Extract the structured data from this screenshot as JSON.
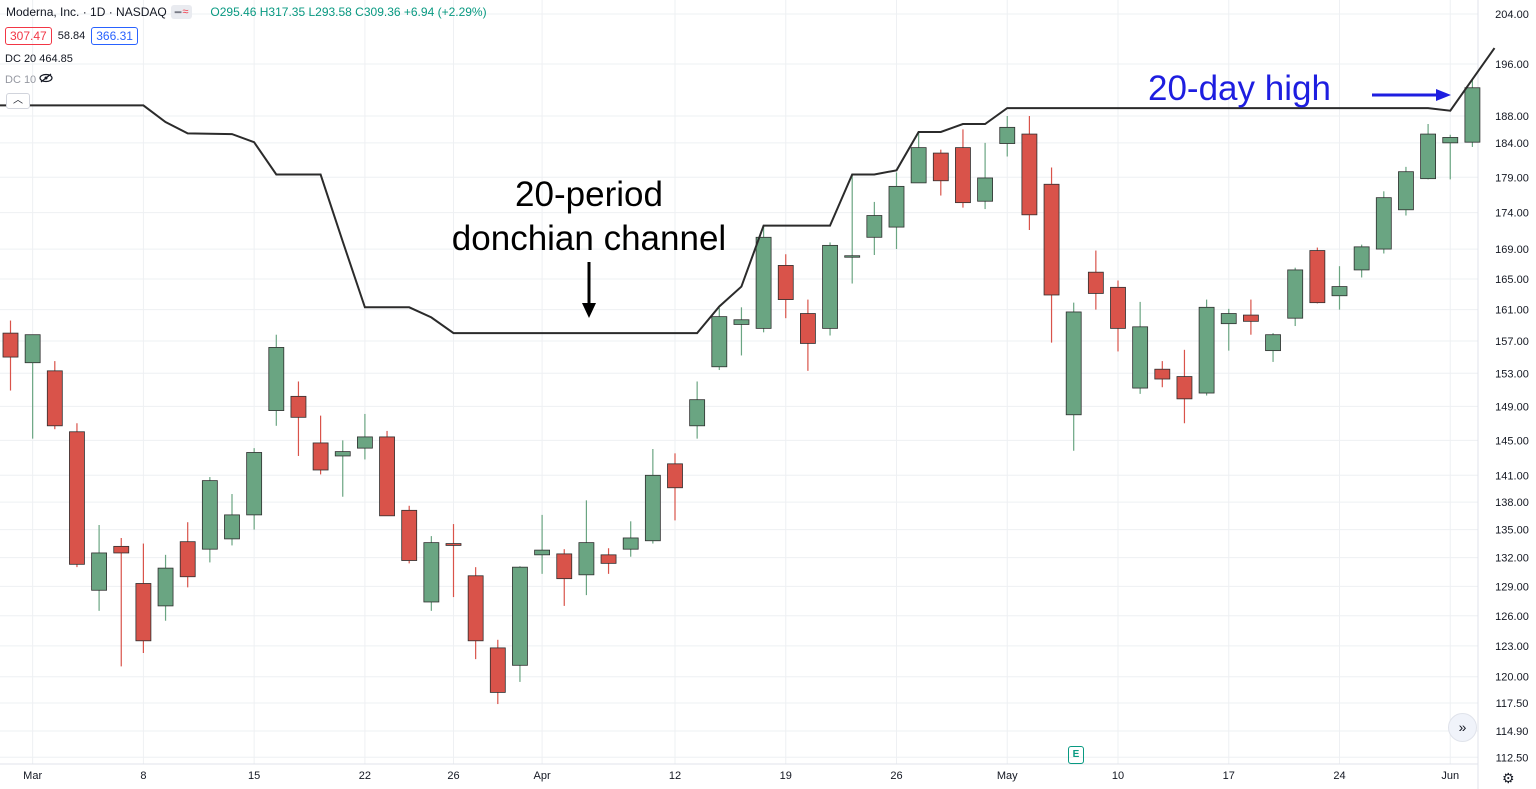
{
  "header": {
    "symbol": "Moderna, Inc. · 1D · NASDAQ",
    "ohlc": "O295.46 H317.35 L293.58 C309.36 +6.94 (+2.29%)",
    "sell_price": "307.47",
    "spread": "58.84",
    "buy_price": "366.31",
    "indicator_1": "DC 20",
    "indicator_1_value": "464.85",
    "indicator_2": "DC 10"
  },
  "annotations": {
    "donchian_line1": "20-period",
    "donchian_line2": "donchian channel",
    "high_label": "20-day high"
  },
  "colors": {
    "up": "#6aa582",
    "down": "#d9534a",
    "channel": "#2b2b2b",
    "grid": "#eef0f3",
    "annotation_blue": "#1e1ee0"
  },
  "icons": [
    "chevron-up-icon",
    "eye-off-icon",
    "double-chevron-right-icon",
    "earnings-icon",
    "gear-icon"
  ],
  "chart_data": {
    "type": "candlestick",
    "y_axis": {
      "scale": "log",
      "ticks": [
        "112.50",
        "114.90",
        "117.50",
        "120.00",
        "123.00",
        "126.00",
        "129.00",
        "132.00",
        "135.00",
        "138.00",
        "141.00",
        "145.00",
        "149.00",
        "153.00",
        "157.00",
        "161.00",
        "165.00",
        "169.00",
        "174.00",
        "179.00",
        "184.00",
        "188.00",
        "196.00",
        "204.00"
      ]
    },
    "x_axis": {
      "ticks": [
        {
          "label": "Mar",
          "index": 1
        },
        {
          "label": "8",
          "index": 6
        },
        {
          "label": "15",
          "index": 11
        },
        {
          "label": "22",
          "index": 16
        },
        {
          "label": "26",
          "index": 20
        },
        {
          "label": "Apr",
          "index": 24
        },
        {
          "label": "12",
          "index": 30
        },
        {
          "label": "19",
          "index": 35
        },
        {
          "label": "26",
          "index": 40
        },
        {
          "label": "May",
          "index": 45
        },
        {
          "label": "10",
          "index": 50
        },
        {
          "label": "17",
          "index": 55
        },
        {
          "label": "24",
          "index": 60
        },
        {
          "label": "Jun",
          "index": 65
        }
      ]
    },
    "candles": [
      {
        "o": 158.0,
        "h": 159.6,
        "l": 150.9,
        "c": 155.0
      },
      {
        "o": 154.3,
        "h": 157.8,
        "l": 145.2,
        "c": 157.8
      },
      {
        "o": 153.3,
        "h": 154.5,
        "l": 146.3,
        "c": 146.7
      },
      {
        "o": 146.0,
        "h": 147.0,
        "l": 131.0,
        "c": 131.3
      },
      {
        "o": 128.6,
        "h": 135.5,
        "l": 126.5,
        "c": 132.5
      },
      {
        "o": 133.2,
        "h": 134.1,
        "l": 121.0,
        "c": 132.5
      },
      {
        "o": 129.3,
        "h": 133.5,
        "l": 122.3,
        "c": 123.5
      },
      {
        "o": 127.0,
        "h": 132.3,
        "l": 125.5,
        "c": 130.9
      },
      {
        "o": 133.7,
        "h": 135.8,
        "l": 128.9,
        "c": 130.0
      },
      {
        "o": 132.9,
        "h": 140.8,
        "l": 131.5,
        "c": 140.4
      },
      {
        "o": 134.0,
        "h": 138.9,
        "l": 133.3,
        "c": 136.6
      },
      {
        "o": 136.6,
        "h": 144.1,
        "l": 135.0,
        "c": 143.6
      },
      {
        "o": 148.5,
        "h": 157.8,
        "l": 146.7,
        "c": 156.2
      },
      {
        "o": 150.2,
        "h": 152.0,
        "l": 143.2,
        "c": 147.7
      },
      {
        "o": 144.7,
        "h": 147.9,
        "l": 141.1,
        "c": 141.6
      },
      {
        "o": 143.2,
        "h": 145.0,
        "l": 138.6,
        "c": 143.7
      },
      {
        "o": 144.1,
        "h": 148.1,
        "l": 142.8,
        "c": 145.4
      },
      {
        "o": 145.4,
        "h": 146.1,
        "l": 136.5,
        "c": 136.5
      },
      {
        "o": 137.1,
        "h": 137.6,
        "l": 131.4,
        "c": 131.7
      },
      {
        "o": 127.4,
        "h": 134.3,
        "l": 126.5,
        "c": 133.6
      },
      {
        "o": 133.5,
        "h": 135.6,
        "l": 127.9,
        "c": 133.3
      },
      {
        "o": 130.1,
        "h": 131.0,
        "l": 121.7,
        "c": 123.5
      },
      {
        "o": 122.8,
        "h": 123.6,
        "l": 117.4,
        "c": 118.5
      },
      {
        "o": 121.1,
        "h": 131.1,
        "l": 119.5,
        "c": 131.0
      },
      {
        "o": 132.3,
        "h": 136.6,
        "l": 130.3,
        "c": 132.8
      },
      {
        "o": 132.4,
        "h": 132.9,
        "l": 127.0,
        "c": 129.8
      },
      {
        "o": 130.2,
        "h": 138.2,
        "l": 128.1,
        "c": 133.6
      },
      {
        "o": 132.3,
        "h": 133.0,
        "l": 130.3,
        "c": 131.4
      },
      {
        "o": 132.9,
        "h": 135.9,
        "l": 132.1,
        "c": 134.1
      },
      {
        "o": 133.8,
        "h": 144.0,
        "l": 133.5,
        "c": 141.0
      },
      {
        "o": 142.3,
        "h": 143.5,
        "l": 136.0,
        "c": 139.6
      },
      {
        "o": 146.7,
        "h": 152.0,
        "l": 145.2,
        "c": 149.8
      },
      {
        "o": 153.8,
        "h": 161.2,
        "l": 153.4,
        "c": 160.1
      },
      {
        "o": 159.1,
        "h": 161.3,
        "l": 155.2,
        "c": 159.7
      },
      {
        "o": 158.6,
        "h": 172.2,
        "l": 158.1,
        "c": 170.6
      },
      {
        "o": 166.8,
        "h": 168.3,
        "l": 159.9,
        "c": 162.3
      },
      {
        "o": 160.5,
        "h": 162.3,
        "l": 153.3,
        "c": 156.7
      },
      {
        "o": 158.6,
        "h": 169.9,
        "l": 157.7,
        "c": 169.5
      },
      {
        "o": 168.1,
        "h": 179.4,
        "l": 164.4,
        "c": 168.1
      },
      {
        "o": 170.6,
        "h": 175.5,
        "l": 168.2,
        "c": 173.6
      },
      {
        "o": 172.0,
        "h": 179.7,
        "l": 169.0,
        "c": 177.7
      },
      {
        "o": 178.2,
        "h": 185.7,
        "l": 178.2,
        "c": 183.3
      },
      {
        "o": 182.5,
        "h": 183.0,
        "l": 176.4,
        "c": 178.5
      },
      {
        "o": 183.3,
        "h": 186.0,
        "l": 174.7,
        "c": 175.4
      },
      {
        "o": 175.6,
        "h": 184.0,
        "l": 174.5,
        "c": 178.9
      },
      {
        "o": 183.9,
        "h": 188.0,
        "l": 182.0,
        "c": 186.3
      },
      {
        "o": 185.3,
        "h": 188.0,
        "l": 171.6,
        "c": 173.7
      },
      {
        "o": 178.0,
        "h": 180.4,
        "l": 156.8,
        "c": 162.9
      },
      {
        "o": 148.0,
        "h": 161.9,
        "l": 143.8,
        "c": 160.7
      },
      {
        "o": 165.9,
        "h": 168.8,
        "l": 161.0,
        "c": 163.1
      },
      {
        "o": 163.9,
        "h": 164.8,
        "l": 155.7,
        "c": 158.6
      },
      {
        "o": 151.2,
        "h": 162.0,
        "l": 150.5,
        "c": 158.8
      },
      {
        "o": 153.5,
        "h": 154.5,
        "l": 151.3,
        "c": 152.3
      },
      {
        "o": 152.6,
        "h": 155.9,
        "l": 147.0,
        "c": 149.9
      },
      {
        "o": 150.6,
        "h": 162.3,
        "l": 150.3,
        "c": 161.3
      },
      {
        "o": 159.2,
        "h": 161.1,
        "l": 155.8,
        "c": 160.5
      },
      {
        "o": 160.3,
        "h": 162.3,
        "l": 157.8,
        "c": 159.5
      },
      {
        "o": 155.8,
        "h": 158.0,
        "l": 154.4,
        "c": 157.8
      },
      {
        "o": 159.9,
        "h": 166.5,
        "l": 158.9,
        "c": 166.2
      },
      {
        "o": 168.8,
        "h": 169.2,
        "l": 161.8,
        "c": 161.9
      },
      {
        "o": 162.8,
        "h": 166.7,
        "l": 161.0,
        "c": 164.0
      },
      {
        "o": 166.2,
        "h": 169.6,
        "l": 165.2,
        "c": 169.3
      },
      {
        "o": 169.0,
        "h": 177.0,
        "l": 168.4,
        "c": 176.1
      },
      {
        "o": 174.4,
        "h": 180.5,
        "l": 173.6,
        "c": 179.8
      },
      {
        "o": 178.8,
        "h": 186.8,
        "l": 178.7,
        "c": 185.3
      },
      {
        "o": 184.0,
        "h": 185.2,
        "l": 178.7,
        "c": 184.8
      },
      {
        "o": 184.1,
        "h": 193.7,
        "l": 183.4,
        "c": 192.3
      }
    ],
    "donchian_upper": [
      {
        "i": -1.5,
        "v": 189.6
      },
      {
        "i": 6,
        "v": 189.6
      },
      {
        "i": 7,
        "v": 187.1
      },
      {
        "i": 8,
        "v": 185.4
      },
      {
        "i": 10,
        "v": 185.3
      },
      {
        "i": 11,
        "v": 184.1
      },
      {
        "i": 12,
        "v": 179.4
      },
      {
        "i": 14,
        "v": 179.4
      },
      {
        "i": 15,
        "v": 170.0
      },
      {
        "i": 16,
        "v": 161.3
      },
      {
        "i": 18,
        "v": 161.3
      },
      {
        "i": 19,
        "v": 160.0
      },
      {
        "i": 20,
        "v": 158.0
      },
      {
        "i": 31,
        "v": 158.0
      },
      {
        "i": 32,
        "v": 161.4
      },
      {
        "i": 33,
        "v": 164.0
      },
      {
        "i": 34,
        "v": 172.2
      },
      {
        "i": 37,
        "v": 172.2
      },
      {
        "i": 38,
        "v": 179.4
      },
      {
        "i": 39,
        "v": 179.4
      },
      {
        "i": 40,
        "v": 180.0
      },
      {
        "i": 41,
        "v": 185.6
      },
      {
        "i": 42,
        "v": 185.6
      },
      {
        "i": 43,
        "v": 186.8
      },
      {
        "i": 44,
        "v": 186.8
      },
      {
        "i": 45,
        "v": 189.2
      },
      {
        "i": 64,
        "v": 189.2
      },
      {
        "i": 65,
        "v": 188.8
      },
      {
        "i": 66,
        "v": 193.6
      },
      {
        "i": 67,
        "v": 198.5
      }
    ]
  }
}
